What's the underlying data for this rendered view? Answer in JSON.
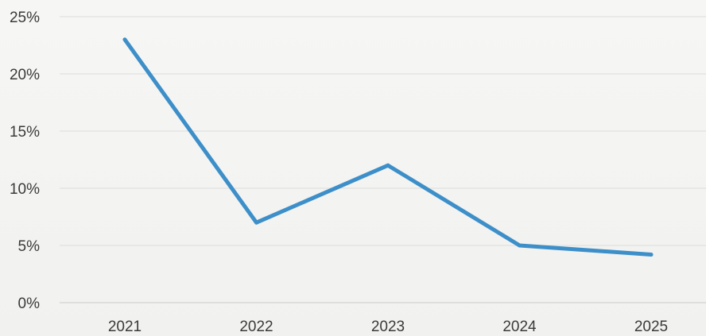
{
  "chart_data": {
    "type": "line",
    "title": "",
    "xlabel": "",
    "ylabel": "",
    "categories": [
      "2021",
      "2022",
      "2023",
      "2024",
      "2025"
    ],
    "series": [
      {
        "values": [
          23,
          7,
          12,
          5,
          4.2
        ]
      }
    ],
    "ylim": [
      0,
      25
    ],
    "yticks": [
      {
        "value": 0,
        "label": "0%"
      },
      {
        "value": 5,
        "label": "5%"
      },
      {
        "value": 10,
        "label": "10%"
      },
      {
        "value": 15,
        "label": "15%"
      },
      {
        "value": 20,
        "label": "20%"
      },
      {
        "value": 25,
        "label": "25%"
      }
    ],
    "grid": true,
    "legend": "none"
  },
  "colors": {
    "series_line": "#3d8fc9",
    "grid": "#dcdcdc",
    "tick_text": "#3a3a3a"
  }
}
